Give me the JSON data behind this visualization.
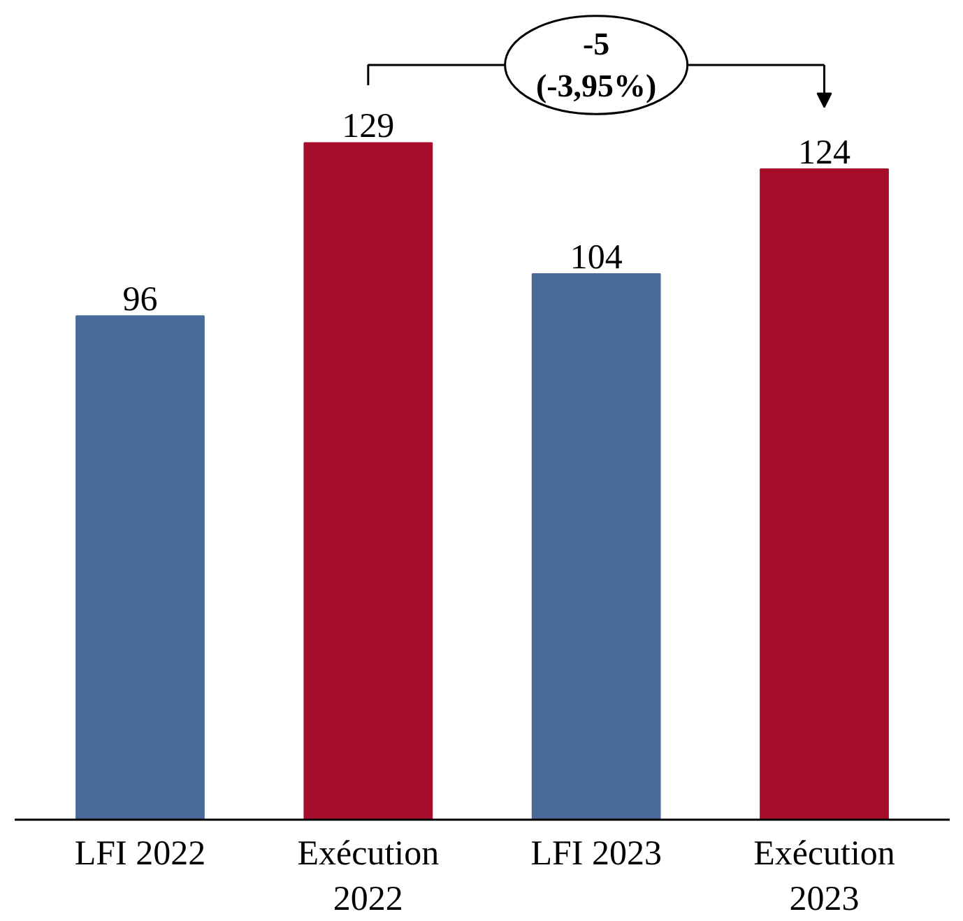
{
  "chart_data": {
    "type": "bar",
    "categories": [
      "LFI 2022",
      "Exécution\n2022",
      "LFI 2023",
      "Exécution\n2023"
    ],
    "values": [
      96,
      129,
      104,
      124
    ],
    "colors": [
      "#4a6b9a",
      "#a50d2b",
      "#4a6b9a",
      "#a50d2b"
    ],
    "data_labels": true,
    "grid": false,
    "annotations": [
      "-5\n(-3,95%)"
    ]
  }
}
